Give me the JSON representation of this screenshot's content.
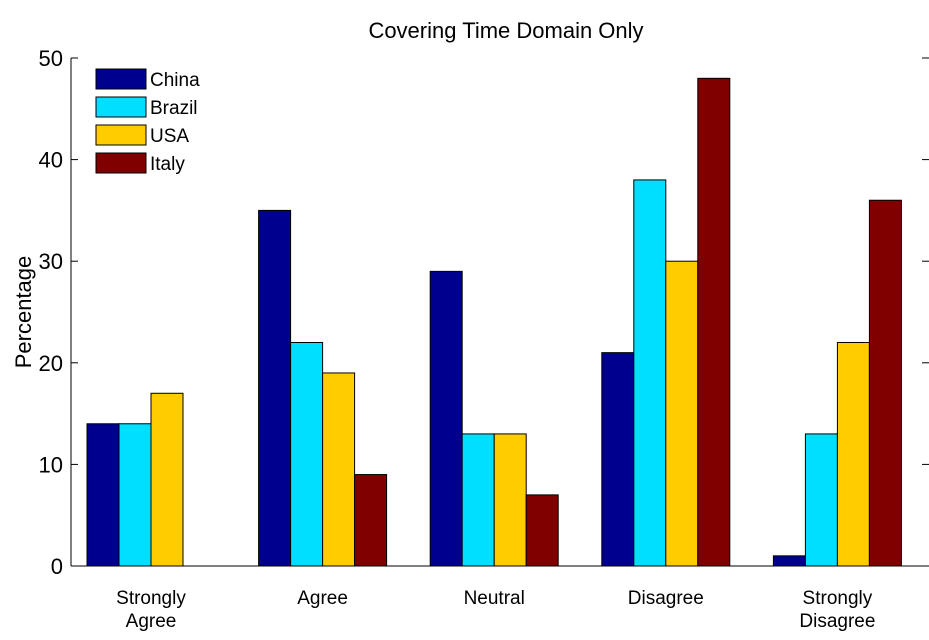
{
  "chart_data": {
    "type": "bar",
    "title": "Covering Time Domain Only",
    "xlabel": "",
    "ylabel": "Percentage",
    "ylim": [
      0,
      50
    ],
    "yticks": [
      "0",
      "10",
      "20",
      "30",
      "40",
      "50"
    ],
    "categories": [
      [
        "Strongly",
        "Agree"
      ],
      [
        "Agree"
      ],
      [
        "Neutral"
      ],
      [
        "Disagree"
      ],
      [
        "Strongly",
        "Disagree"
      ]
    ],
    "series": [
      {
        "name": "China",
        "color": "#00008f",
        "values": [
          14,
          35,
          29,
          21,
          1
        ]
      },
      {
        "name": "Brazil",
        "color": "#00dfff",
        "values": [
          14,
          22,
          13,
          38,
          13
        ]
      },
      {
        "name": "USA",
        "color": "#ffcc00",
        "values": [
          17,
          19,
          13,
          30,
          22
        ]
      },
      {
        "name": "Italy",
        "color": "#800000",
        "values": [
          0,
          9,
          7,
          48,
          36
        ]
      }
    ],
    "legend_position": "top-left",
    "grid": false
  }
}
